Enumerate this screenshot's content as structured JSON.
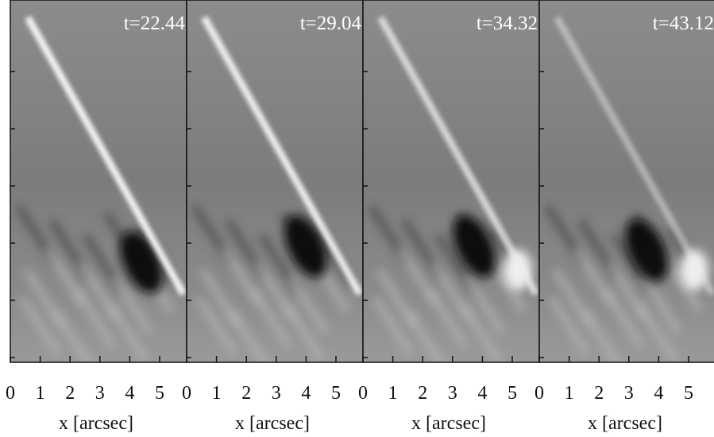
{
  "panels": [
    {
      "label": "t=22.44",
      "xticks": [
        0,
        1,
        2,
        3,
        4,
        5
      ],
      "xlabel": "x [arcsec]"
    },
    {
      "label": "t=29.04",
      "xticks": [
        0,
        1,
        2,
        3,
        4,
        5
      ],
      "xlabel": "x [arcsec]"
    },
    {
      "label": "t=34.32",
      "xticks": [
        0,
        1,
        2,
        3,
        4,
        5
      ],
      "xlabel": "x [arcsec]"
    },
    {
      "label": "t=43.12",
      "xticks": [
        0,
        1,
        2,
        3,
        4,
        5
      ],
      "xlabel": "x [arcsec]"
    }
  ]
}
